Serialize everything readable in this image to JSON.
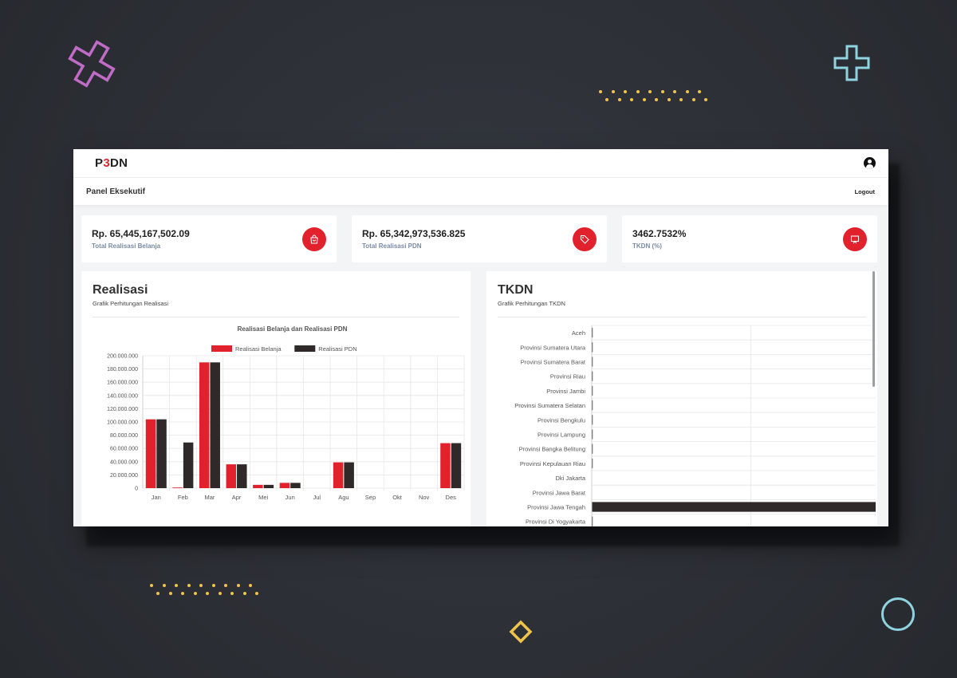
{
  "app": {
    "logo_prefix": "P",
    "logo_accent": "3",
    "logo_suffix": "DN"
  },
  "header": {
    "panel_title": "Panel Eksekutif",
    "logout_label": "Logout"
  },
  "cards": [
    {
      "value": "Rp. 65,445,167,502.09",
      "label": "Total Realisasi Belanja",
      "icon": "shopping-bag-icon"
    },
    {
      "value": "Rp. 65,342,973,536.825",
      "label": "Total Realisasi PDN",
      "icon": "tag-icon"
    },
    {
      "value": "3462.7532%",
      "label": "TKDN (%)",
      "icon": "presentation-icon"
    }
  ],
  "realisasi": {
    "title": "Realisasi",
    "subtitle": "Grafik Perhitungan Realisasi"
  },
  "tkdn": {
    "title": "TKDN",
    "subtitle": "Grafik Perhitungan TKDN"
  },
  "colors": {
    "accent": "#e1222d",
    "dark": "#2f2929"
  },
  "chart_data": [
    {
      "type": "bar",
      "title": "Realisasi Belanja dan Realisasi PDN",
      "categories": [
        "Jan",
        "Feb",
        "Mar",
        "Apr",
        "Mei",
        "Jun",
        "Jul",
        "Agu",
        "Sep",
        "Okt",
        "Nov",
        "Des"
      ],
      "series": [
        {
          "name": "Realisasi Belanja",
          "color": "#e1222d",
          "values": [
            104000000,
            1000000,
            190000000,
            36000000,
            5000000,
            8000000,
            0,
            39000000,
            0,
            0,
            0,
            68000000
          ]
        },
        {
          "name": "Realisasi PDN",
          "color": "#2f2929",
          "values": [
            104000000,
            69000000,
            190000000,
            36000000,
            5000000,
            8000000,
            0,
            39000000,
            0,
            0,
            0,
            68000000
          ]
        }
      ],
      "yticks": [
        "0",
        "20.000.000",
        "40.000.000",
        "60.000.000",
        "80.000.000",
        "100.000.000",
        "120.000.000",
        "140.000.000",
        "160.000.000",
        "180.000.000",
        "200.000.000"
      ],
      "ylim": [
        0,
        200000000
      ],
      "legend": "top",
      "grid": true
    },
    {
      "type": "bar",
      "orientation": "horizontal",
      "categories": [
        "Aceh",
        "Provinsi Sumatera Utara",
        "Provinsi Sumatera Barat",
        "Provinsi Riau",
        "Provinsi Jambi",
        "Provinsi Sumatera Selatan",
        "Provinsi Bengkulu",
        "Provinsi Lampung",
        "Provinsi Bangka Belitung",
        "Provinsi Kepulauan Riau",
        "Dki Jakarta",
        "Provinsi Jawa Barat",
        "Provinsi Jawa Tengah",
        "Provinsi Di Yogyakarta"
      ],
      "values": [
        0.2,
        0.2,
        0.2,
        0.2,
        0.2,
        0.2,
        0.2,
        0.2,
        0.2,
        0.2,
        0,
        0,
        100,
        0.2
      ],
      "xlim": [
        0,
        100
      ],
      "grid": true
    }
  ]
}
